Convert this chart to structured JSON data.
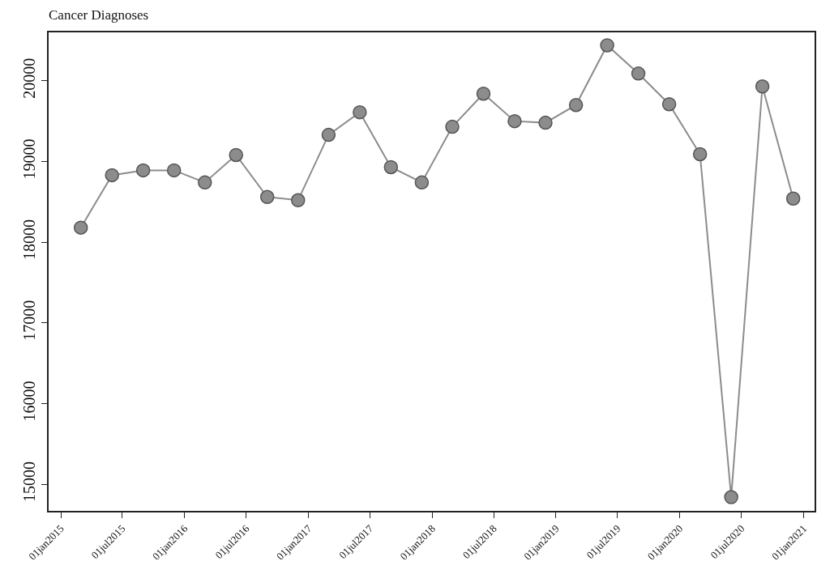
{
  "chart_data": {
    "type": "line",
    "title": "Cancer Diagnoses",
    "x": [
      "2015-03-01",
      "2015-06-01",
      "2015-09-01",
      "2015-12-01",
      "2016-03-01",
      "2016-06-01",
      "2016-09-01",
      "2016-12-01",
      "2017-03-01",
      "2017-06-01",
      "2017-09-01",
      "2017-12-01",
      "2018-03-01",
      "2018-06-01",
      "2018-09-01",
      "2018-12-01",
      "2019-03-01",
      "2019-06-01",
      "2019-09-01",
      "2019-12-01",
      "2020-03-01",
      "2020-06-01",
      "2020-09-01",
      "2020-12-01"
    ],
    "series": [
      {
        "color": "#8c8c8c",
        "values": [
          18180,
          18830,
          18890,
          18890,
          18740,
          19080,
          18560,
          18520,
          19330,
          19610,
          18930,
          18740,
          19430,
          19840,
          19500,
          19480,
          19700,
          20440,
          20090,
          19710,
          19090,
          14840,
          19930,
          18540
        ]
      }
    ],
    "marker": "circle",
    "grid": false,
    "xlim": [
      "2014-11-26",
      "2021-02-02"
    ],
    "xticks": [
      {
        "value": "2015-01-01",
        "label": "01jan2015"
      },
      {
        "value": "2015-07-01",
        "label": "01jul2015"
      },
      {
        "value": "2016-01-01",
        "label": "01jan2016"
      },
      {
        "value": "2016-07-01",
        "label": "01jul2016"
      },
      {
        "value": "2017-01-01",
        "label": "01jan2017"
      },
      {
        "value": "2017-07-01",
        "label": "01jul2017"
      },
      {
        "value": "2018-01-01",
        "label": "01jan2018"
      },
      {
        "value": "2018-07-01",
        "label": "01jul2018"
      },
      {
        "value": "2019-01-01",
        "label": "01jan2019"
      },
      {
        "value": "2019-07-01",
        "label": "01jul2019"
      },
      {
        "value": "2020-01-01",
        "label": "01jan2020"
      },
      {
        "value": "2020-07-01",
        "label": "01jul2020"
      },
      {
        "value": "2021-01-01",
        "label": "01jan2021"
      }
    ],
    "ylim": [
      14670,
      20600
    ],
    "yticks": [
      15000,
      16000,
      17000,
      18000,
      19000,
      20000
    ]
  }
}
